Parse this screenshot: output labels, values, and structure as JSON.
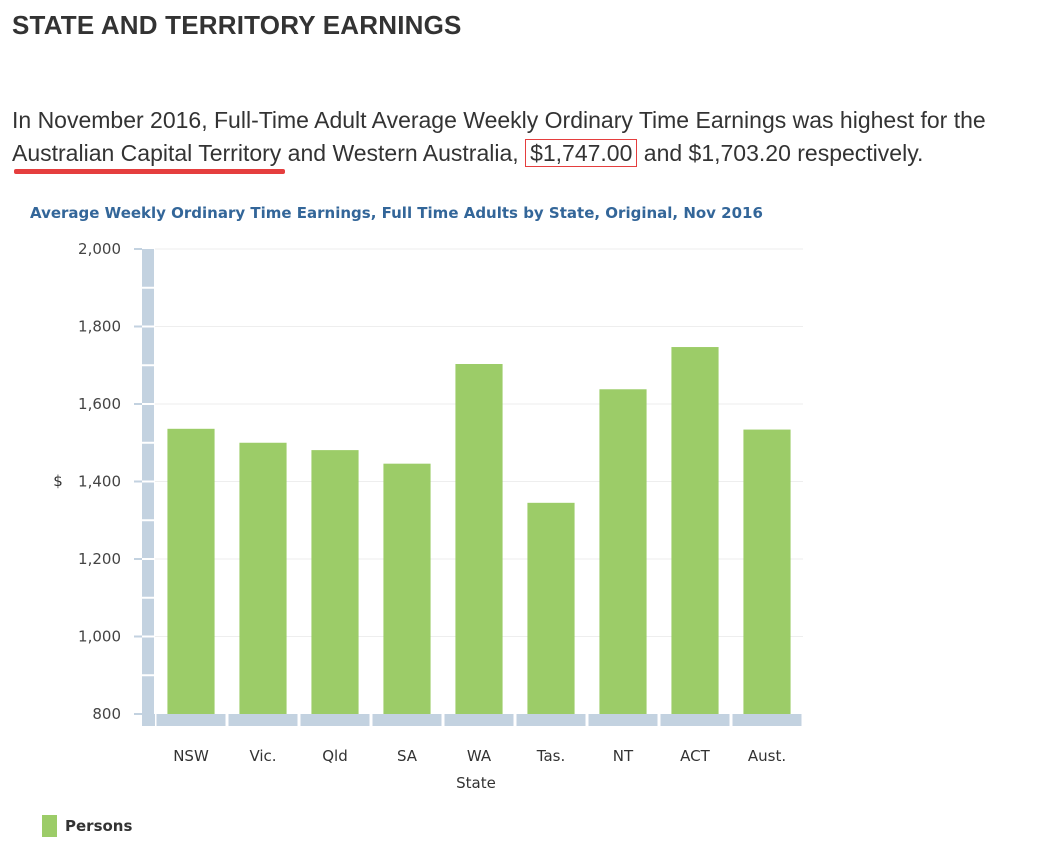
{
  "heading": "STATE AND TERRITORY EARNINGS",
  "intro": {
    "text_before": "In November 2016, Full-Time Adult Average Weekly Ordinary Time Earnings was highest for the ",
    "highlight_state": "Australian Capital Territory",
    "text_middle": " and Western Australia, ",
    "highlight_value": "$1,747.00",
    "text_after": " and $1,703.20 respectively."
  },
  "colors": {
    "bar": "#9ccc68",
    "axis_band": "#c3d2e0",
    "grid": "#eeeeee",
    "title": "#336699",
    "annotation": "#e53e3e"
  },
  "chart_data": {
    "type": "bar",
    "title": "Average Weekly Ordinary Time Earnings, Full Time Adults by State, Original, Nov 2016",
    "xlabel": "State",
    "ylabel": "$",
    "categories": [
      "NSW",
      "Vic.",
      "Qld",
      "SA",
      "WA",
      "Tas.",
      "NT",
      "ACT",
      "Aust."
    ],
    "series": [
      {
        "name": "Persons",
        "values": [
          1536,
          1500,
          1481,
          1446,
          1703.2,
          1345,
          1638,
          1747,
          1534
        ]
      }
    ],
    "ylim": [
      800,
      2000
    ],
    "yticks": [
      800,
      1000,
      1200,
      1400,
      1600,
      1800,
      2000
    ],
    "ytick_labels": [
      "800",
      "1,000",
      "1,200",
      "1,400",
      "1,600",
      "1,800",
      "2,000"
    ],
    "grid": true,
    "legend_position": "bottom-left"
  }
}
